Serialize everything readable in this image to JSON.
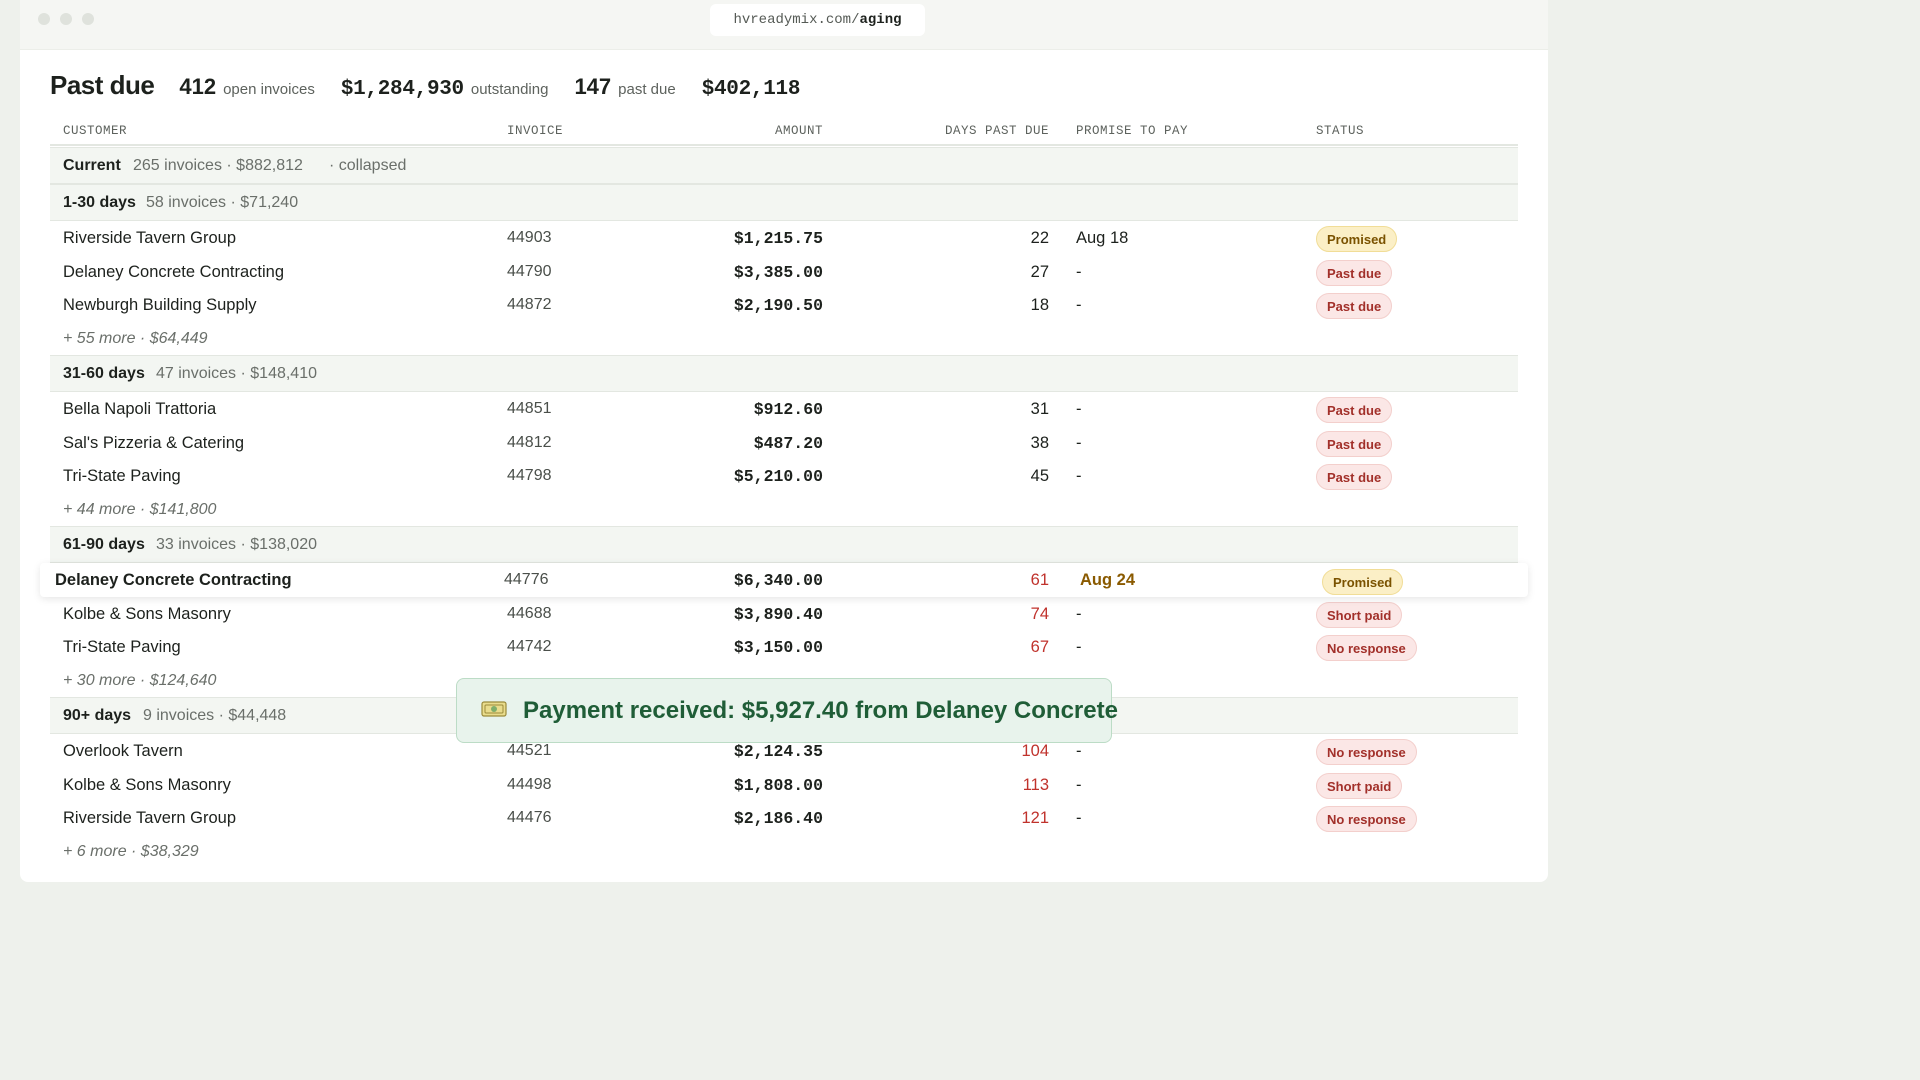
{
  "browser": {
    "url_prefix": "hvreadymix.com/",
    "url_path": "aging"
  },
  "summary": {
    "title": "Past due",
    "open_invoices": "412",
    "open_invoices_label": "open invoices",
    "outstanding": "$1,284,930",
    "outstanding_label": "outstanding",
    "past_due_count": "147",
    "past_due_label": "past due",
    "past_due_amount": "$402,118"
  },
  "columns": [
    "CUSTOMER",
    "INVOICE",
    "AMOUNT",
    "DAYS PAST DUE",
    "PROMISE TO PAY",
    "STATUS"
  ],
  "groups": {
    "current": {
      "name": "Current",
      "meta": "265 invoices · $882,812",
      "note": "· collapsed"
    },
    "g1": {
      "name": "1-30 days",
      "meta": "58 invoices · $71,240",
      "more": "+ 55 more · $64,449",
      "rows": [
        {
          "customer": "Riverside Tavern Group",
          "invoice": "44903",
          "amount": "$1,215.75",
          "days": "22",
          "ptp": "Aug 18",
          "status": "Promised"
        },
        {
          "customer": "Delaney Concrete Contracting",
          "invoice": "44790",
          "amount": "$3,385.00",
          "days": "27",
          "ptp": "-",
          "status": "Past due"
        },
        {
          "customer": "Newburgh Building Supply",
          "invoice": "44872",
          "amount": "$2,190.50",
          "days": "18",
          "ptp": "-",
          "status": "Past due"
        }
      ]
    },
    "g2": {
      "name": "31-60 days",
      "meta": "47 invoices · $148,410",
      "more": "+ 44 more · $141,800",
      "rows": [
        {
          "customer": "Bella Napoli Trattoria",
          "invoice": "44851",
          "amount": "$912.60",
          "days": "31",
          "ptp": "-",
          "status": "Past due"
        },
        {
          "customer": "Sal's Pizzeria & Catering",
          "invoice": "44812",
          "amount": "$487.20",
          "days": "38",
          "ptp": "-",
          "status": "Past due"
        },
        {
          "customer": "Tri-State Paving",
          "invoice": "44798",
          "amount": "$5,210.00",
          "days": "45",
          "ptp": "-",
          "status": "Past due"
        }
      ]
    },
    "g3": {
      "name": "61-90 days",
      "meta": "33 invoices · $138,020",
      "more": "+ 30 more · $124,640",
      "rows": [
        {
          "customer": "Delaney Concrete Contracting",
          "invoice": "44776",
          "amount": "$6,340.00",
          "days": "61",
          "ptp": "Aug 24",
          "status": "Promised"
        },
        {
          "customer": "Kolbe & Sons Masonry",
          "invoice": "44688",
          "amount": "$3,890.40",
          "days": "74",
          "ptp": "-",
          "status": "Short paid"
        },
        {
          "customer": "Tri-State Paving",
          "invoice": "44742",
          "amount": "$3,150.00",
          "days": "67",
          "ptp": "-",
          "status": "No response"
        }
      ]
    },
    "g4": {
      "name": "90+ days",
      "meta": "9 invoices · $44,448",
      "more": "+ 6 more · $38,329",
      "rows": [
        {
          "customer": "Overlook Tavern",
          "invoice": "44521",
          "amount": "$2,124.35",
          "days": "104",
          "ptp": "-",
          "status": "No response"
        },
        {
          "customer": "Kolbe & Sons Masonry",
          "invoice": "44498",
          "amount": "$1,808.00",
          "days": "113",
          "ptp": "-",
          "status": "Short paid"
        },
        {
          "customer": "Riverside Tavern Group",
          "invoice": "44476",
          "amount": "$2,186.40",
          "days": "121",
          "ptp": "-",
          "status": "No response"
        }
      ]
    }
  },
  "toast": {
    "icon": "money-icon",
    "text": "Payment received: $5,927.40 from Delaney Concrete"
  },
  "colors": {
    "accent_green": "#1f5d37",
    "overdue_red": "#c0322c",
    "promised_gold": "#8a5a00"
  }
}
